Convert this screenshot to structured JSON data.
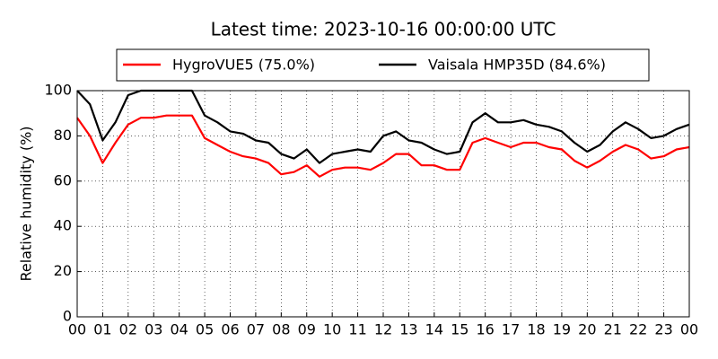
{
  "chart_data": {
    "type": "line",
    "title": "Latest time: 2023-10-16 00:00:00 UTC",
    "y_label": "Relative humidity (%)",
    "x": [
      0,
      0.5,
      1,
      1.5,
      2,
      2.5,
      3,
      3.5,
      4,
      4.5,
      5,
      5.5,
      6,
      6.5,
      7,
      7.5,
      8,
      8.5,
      9,
      9.5,
      10,
      10.5,
      11,
      11.5,
      12,
      12.5,
      13,
      13.5,
      14,
      14.5,
      15,
      15.5,
      16,
      16.5,
      17,
      17.5,
      18,
      18.5,
      19,
      19.5,
      20,
      20.5,
      21,
      21.5,
      22,
      22.5,
      23,
      23.5,
      24
    ],
    "series": [
      {
        "name": "HygroVUE5 (75.0%)",
        "color": "#ff0000",
        "values": [
          88,
          80,
          68,
          77,
          85,
          88,
          88,
          89,
          89,
          89,
          79,
          76,
          73,
          71,
          70,
          68,
          63,
          64,
          67,
          62,
          65,
          66,
          66,
          65,
          68,
          72,
          72,
          67,
          67,
          65,
          65,
          77,
          79,
          77,
          75,
          77,
          77,
          75,
          74,
          69,
          66,
          69,
          73,
          76,
          74,
          70,
          71,
          74,
          75
        ]
      },
      {
        "name": "Vaisala HMP35D (84.6%)",
        "color": "#000000",
        "values": [
          100,
          94,
          78,
          86,
          98,
          100,
          100,
          100,
          100,
          100,
          89,
          86,
          82,
          81,
          78,
          77,
          72,
          70,
          74,
          68,
          72,
          73,
          74,
          73,
          80,
          82,
          78,
          77,
          74,
          72,
          73,
          86,
          90,
          86,
          86,
          87,
          85,
          84,
          82,
          77,
          73,
          76,
          82,
          86,
          83,
          79,
          80,
          83,
          85
        ]
      }
    ],
    "xlim": [
      0,
      24
    ],
    "xticks": [
      {
        "value": 0,
        "label": "00"
      },
      {
        "value": 1,
        "label": "01"
      },
      {
        "value": 2,
        "label": "02"
      },
      {
        "value": 3,
        "label": "03"
      },
      {
        "value": 4,
        "label": "04"
      },
      {
        "value": 5,
        "label": "05"
      },
      {
        "value": 6,
        "label": "06"
      },
      {
        "value": 7,
        "label": "07"
      },
      {
        "value": 8,
        "label": "08"
      },
      {
        "value": 9,
        "label": "09"
      },
      {
        "value": 10,
        "label": "10"
      },
      {
        "value": 11,
        "label": "11"
      },
      {
        "value": 12,
        "label": "12"
      },
      {
        "value": 13,
        "label": "13"
      },
      {
        "value": 14,
        "label": "14"
      },
      {
        "value": 15,
        "label": "15"
      },
      {
        "value": 16,
        "label": "16"
      },
      {
        "value": 17,
        "label": "17"
      },
      {
        "value": 18,
        "label": "18"
      },
      {
        "value": 19,
        "label": "19"
      },
      {
        "value": 20,
        "label": "20"
      },
      {
        "value": 21,
        "label": "21"
      },
      {
        "value": 22,
        "label": "22"
      },
      {
        "value": 23,
        "label": "23"
      },
      {
        "value": 24,
        "label": "00"
      }
    ],
    "ylim": [
      0,
      100
    ],
    "yticks": [
      0,
      20,
      40,
      60,
      80,
      100
    ],
    "grid": true
  }
}
